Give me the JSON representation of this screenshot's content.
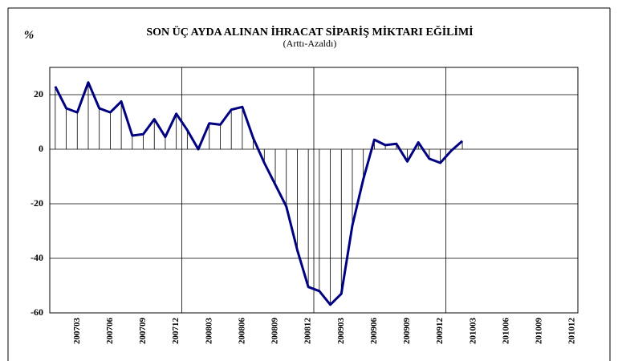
{
  "chart_data": {
    "type": "line",
    "title": "SON ÜÇ AYDA ALINAN İHRACAT SİPARİŞ MİKTARI EĞİLİMİ",
    "subtitle": "(Arttı-Azaldı)",
    "y_label": "%",
    "categories": [
      null,
      null,
      "200703",
      null,
      null,
      "200706",
      null,
      null,
      "200709",
      null,
      null,
      "200712",
      null,
      null,
      "200803",
      null,
      null,
      "200806",
      null,
      null,
      "200809",
      null,
      null,
      "200812",
      null,
      null,
      "200903",
      null,
      null,
      "200906",
      null,
      null,
      "200909",
      null,
      null,
      "200912",
      null,
      null,
      "201003",
      null,
      null,
      "201006",
      null,
      null,
      "201009",
      null,
      null,
      "201012"
    ],
    "series": [
      {
        "color": "#000080",
        "values": [
          23,
          15,
          13.5,
          24.5,
          15,
          13.5,
          17.5,
          5,
          5.5,
          11,
          4.5,
          13,
          7,
          0,
          9.5,
          9,
          14.5,
          15.5,
          4,
          -5,
          -13,
          -21,
          -37,
          -50.5,
          -52,
          -57,
          -53,
          -28,
          -11,
          3.5,
          1.5,
          2,
          -4.5,
          2.5,
          -3.5,
          -5,
          -0.5,
          3,
          null,
          null,
          null,
          null,
          null,
          null,
          null,
          null,
          null,
          null
        ]
      }
    ],
    "ylim": [
      -60,
      30
    ],
    "yticks": [
      -60,
      -40,
      -20,
      0,
      20
    ],
    "grid": true,
    "drop_lines": true
  }
}
